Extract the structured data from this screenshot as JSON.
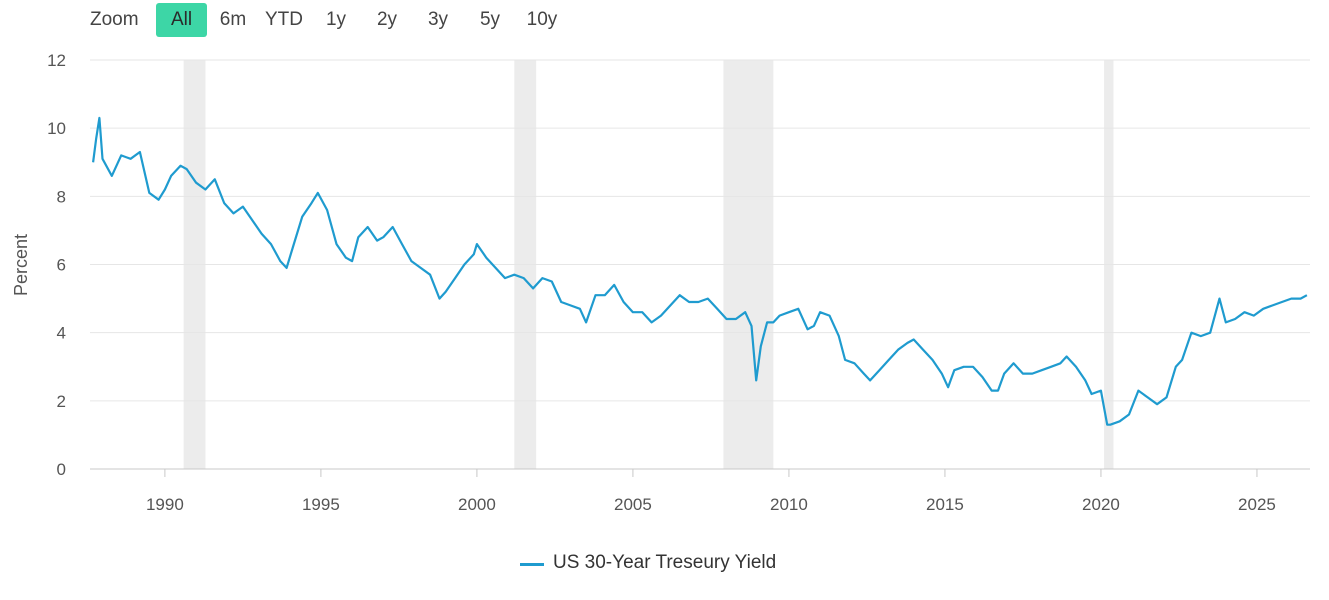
{
  "zoom": {
    "label": "Zoom",
    "buttons": [
      "All",
      "6m",
      "YTD",
      "1y",
      "2y",
      "3y",
      "5y",
      "10y"
    ],
    "active": "All"
  },
  "colors": {
    "line": "#1f9bcf",
    "active_button": "#3dd6a6",
    "recession": "#ececec",
    "grid": "#e6e6e6"
  },
  "chart_data": {
    "type": "line",
    "title": "",
    "xlabel": "",
    "ylabel": "Percent",
    "xlim": [
      1987.6,
      2026.7
    ],
    "ylim": [
      0,
      12
    ],
    "yticks": [
      0,
      2,
      4,
      6,
      8,
      10,
      12
    ],
    "xticks": [
      1990,
      1995,
      2000,
      2005,
      2010,
      2015,
      2020,
      2025
    ],
    "grid": true,
    "legend_position": "bottom-center",
    "recessions": [
      [
        1990.6,
        1991.3
      ],
      [
        2001.2,
        2001.9
      ],
      [
        2007.9,
        2009.5
      ],
      [
        2020.1,
        2020.4
      ]
    ],
    "series": [
      {
        "name": "US 30-Year Treseury Yield",
        "x": [
          1987.7,
          1987.8,
          1987.9,
          1988.0,
          1988.3,
          1988.6,
          1988.9,
          1989.2,
          1989.5,
          1989.8,
          1990.0,
          1990.2,
          1990.5,
          1990.7,
          1991.0,
          1991.3,
          1991.6,
          1991.9,
          1992.2,
          1992.5,
          1992.8,
          1993.1,
          1993.4,
          1993.7,
          1993.9,
          1994.1,
          1994.4,
          1994.7,
          1994.9,
          1995.2,
          1995.5,
          1995.8,
          1996.0,
          1996.2,
          1996.5,
          1996.8,
          1997.0,
          1997.3,
          1997.6,
          1997.9,
          1998.2,
          1998.5,
          1998.8,
          1999.0,
          1999.3,
          1999.6,
          1999.9,
          2000.0,
          2000.3,
          2000.6,
          2000.9,
          2001.2,
          2001.5,
          2001.8,
          2002.1,
          2002.4,
          2002.7,
          2003.0,
          2003.3,
          2003.5,
          2003.8,
          2004.1,
          2004.4,
          2004.7,
          2005.0,
          2005.3,
          2005.6,
          2005.9,
          2006.2,
          2006.5,
          2006.8,
          2007.1,
          2007.4,
          2007.7,
          2008.0,
          2008.3,
          2008.6,
          2008.8,
          2008.95,
          2009.1,
          2009.3,
          2009.5,
          2009.7,
          2010.0,
          2010.3,
          2010.6,
          2010.8,
          2011.0,
          2011.3,
          2011.6,
          2011.8,
          2012.1,
          2012.4,
          2012.6,
          2012.9,
          2013.2,
          2013.5,
          2013.8,
          2014.0,
          2014.3,
          2014.6,
          2014.9,
          2015.1,
          2015.3,
          2015.6,
          2015.9,
          2016.2,
          2016.5,
          2016.7,
          2016.9,
          2017.2,
          2017.5,
          2017.8,
          2018.1,
          2018.4,
          2018.7,
          2018.9,
          2019.2,
          2019.5,
          2019.7,
          2020.0,
          2020.2,
          2020.3,
          2020.6,
          2020.9,
          2021.2,
          2021.5,
          2021.8,
          2022.1,
          2022.4,
          2022.6,
          2022.9,
          2023.2,
          2023.5,
          2023.8,
          2024.0,
          2024.3,
          2024.6,
          2024.9,
          2025.2,
          2025.5,
          2025.8,
          2026.1,
          2026.4,
          2026.6
        ],
        "y": [
          9.0,
          9.7,
          10.3,
          9.1,
          8.6,
          9.2,
          9.1,
          9.3,
          8.1,
          7.9,
          8.2,
          8.6,
          8.9,
          8.8,
          8.4,
          8.2,
          8.5,
          7.8,
          7.5,
          7.7,
          7.3,
          6.9,
          6.6,
          6.1,
          5.9,
          6.5,
          7.4,
          7.8,
          8.1,
          7.6,
          6.6,
          6.2,
          6.1,
          6.8,
          7.1,
          6.7,
          6.8,
          7.1,
          6.6,
          6.1,
          5.9,
          5.7,
          5.0,
          5.2,
          5.6,
          6.0,
          6.3,
          6.6,
          6.2,
          5.9,
          5.6,
          5.7,
          5.6,
          5.3,
          5.6,
          5.5,
          4.9,
          4.8,
          4.7,
          4.3,
          5.1,
          5.1,
          5.4,
          4.9,
          4.6,
          4.6,
          4.3,
          4.5,
          4.8,
          5.1,
          4.9,
          4.9,
          5.0,
          4.7,
          4.4,
          4.4,
          4.6,
          4.2,
          2.6,
          3.6,
          4.3,
          4.3,
          4.5,
          4.6,
          4.7,
          4.1,
          4.2,
          4.6,
          4.5,
          3.9,
          3.2,
          3.1,
          2.8,
          2.6,
          2.9,
          3.2,
          3.5,
          3.7,
          3.8,
          3.5,
          3.2,
          2.8,
          2.4,
          2.9,
          3.0,
          3.0,
          2.7,
          2.3,
          2.3,
          2.8,
          3.1,
          2.8,
          2.8,
          2.9,
          3.0,
          3.1,
          3.3,
          3.0,
          2.6,
          2.2,
          2.3,
          1.3,
          1.3,
          1.4,
          1.6,
          2.3,
          2.1,
          1.9,
          2.1,
          3.0,
          3.2,
          4.0,
          3.9,
          4.0,
          5.0,
          4.3,
          4.4,
          4.6,
          4.5,
          4.7,
          4.8,
          4.9,
          5.0,
          5.0,
          5.1
        ]
      }
    ]
  }
}
